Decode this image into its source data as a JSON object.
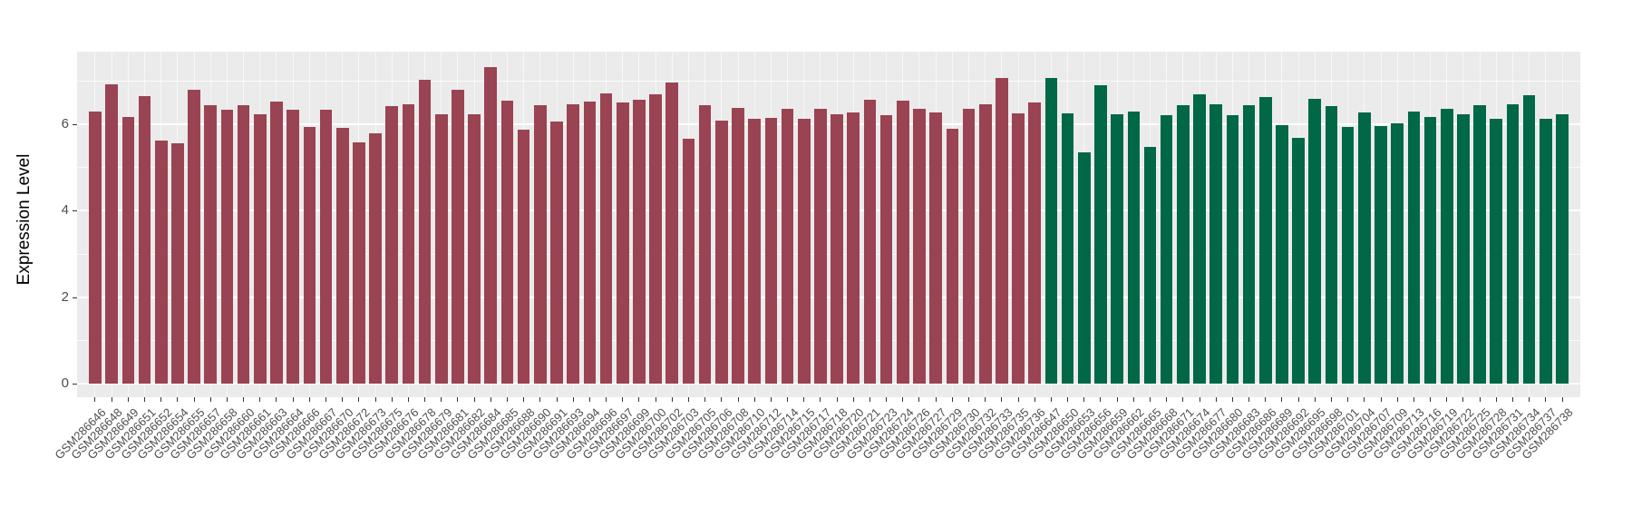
{
  "chart_data": {
    "type": "bar",
    "title": "",
    "xlabel": "",
    "ylabel": "Expression Level",
    "ylim": [
      0,
      7.66
    ],
    "yticks": [
      0,
      2,
      4,
      6
    ],
    "yminor": [
      1,
      3,
      5,
      7
    ],
    "legend_position": "none",
    "grid": "white major and minor gridlines on gray panel",
    "panel_bg": "#EBEBEB",
    "grid_color": "#FFFFFF",
    "tick_text_color": "#4d4d4d",
    "group_colors": {
      "maroon": "#9A4352",
      "green": "#006747"
    },
    "bars": [
      {
        "label": "GSM286646",
        "value": 6.29,
        "group": "maroon"
      },
      {
        "label": "GSM286648",
        "value": 6.91,
        "group": "maroon"
      },
      {
        "label": "GSM286649",
        "value": 6.15,
        "group": "maroon"
      },
      {
        "label": "GSM286651",
        "value": 6.63,
        "group": "maroon"
      },
      {
        "label": "GSM286652",
        "value": 5.61,
        "group": "maroon"
      },
      {
        "label": "GSM286654",
        "value": 5.56,
        "group": "maroon"
      },
      {
        "label": "GSM286655",
        "value": 6.79,
        "group": "maroon"
      },
      {
        "label": "GSM286657",
        "value": 6.42,
        "group": "maroon"
      },
      {
        "label": "GSM286658",
        "value": 6.32,
        "group": "maroon"
      },
      {
        "label": "GSM286660",
        "value": 6.42,
        "group": "maroon"
      },
      {
        "label": "GSM286661",
        "value": 6.22,
        "group": "maroon"
      },
      {
        "label": "GSM286663",
        "value": 6.51,
        "group": "maroon"
      },
      {
        "label": "GSM286664",
        "value": 6.33,
        "group": "maroon"
      },
      {
        "label": "GSM286666",
        "value": 5.93,
        "group": "maroon"
      },
      {
        "label": "GSM286667",
        "value": 6.33,
        "group": "maroon"
      },
      {
        "label": "GSM286670",
        "value": 5.9,
        "group": "maroon"
      },
      {
        "label": "GSM286672",
        "value": 5.58,
        "group": "maroon"
      },
      {
        "label": "GSM286673",
        "value": 5.79,
        "group": "maroon"
      },
      {
        "label": "GSM286675",
        "value": 6.4,
        "group": "maroon"
      },
      {
        "label": "GSM286676",
        "value": 6.44,
        "group": "maroon"
      },
      {
        "label": "GSM286678",
        "value": 7.02,
        "group": "maroon"
      },
      {
        "label": "GSM286679",
        "value": 6.22,
        "group": "maroon"
      },
      {
        "label": "GSM286681",
        "value": 6.79,
        "group": "maroon"
      },
      {
        "label": "GSM286682",
        "value": 6.23,
        "group": "maroon"
      },
      {
        "label": "GSM286684",
        "value": 7.3,
        "group": "maroon"
      },
      {
        "label": "GSM286685",
        "value": 6.53,
        "group": "maroon"
      },
      {
        "label": "GSM286688",
        "value": 5.87,
        "group": "maroon"
      },
      {
        "label": "GSM286690",
        "value": 6.42,
        "group": "maroon"
      },
      {
        "label": "GSM286691",
        "value": 6.05,
        "group": "maroon"
      },
      {
        "label": "GSM286693",
        "value": 6.46,
        "group": "maroon"
      },
      {
        "label": "GSM286694",
        "value": 6.51,
        "group": "maroon"
      },
      {
        "label": "GSM286696",
        "value": 6.7,
        "group": "maroon"
      },
      {
        "label": "GSM286697",
        "value": 6.49,
        "group": "maroon"
      },
      {
        "label": "GSM286699",
        "value": 6.56,
        "group": "maroon"
      },
      {
        "label": "GSM286700",
        "value": 6.69,
        "group": "maroon"
      },
      {
        "label": "GSM286702",
        "value": 6.95,
        "group": "maroon"
      },
      {
        "label": "GSM286703",
        "value": 5.66,
        "group": "maroon"
      },
      {
        "label": "GSM286705",
        "value": 6.42,
        "group": "maroon"
      },
      {
        "label": "GSM286706",
        "value": 6.08,
        "group": "maroon"
      },
      {
        "label": "GSM286708",
        "value": 6.36,
        "group": "maroon"
      },
      {
        "label": "GSM286710",
        "value": 6.11,
        "group": "maroon"
      },
      {
        "label": "GSM286712",
        "value": 6.13,
        "group": "maroon"
      },
      {
        "label": "GSM286714",
        "value": 6.34,
        "group": "maroon"
      },
      {
        "label": "GSM286715",
        "value": 6.11,
        "group": "maroon"
      },
      {
        "label": "GSM286717",
        "value": 6.34,
        "group": "maroon"
      },
      {
        "label": "GSM286718",
        "value": 6.23,
        "group": "maroon"
      },
      {
        "label": "GSM286720",
        "value": 6.27,
        "group": "maroon"
      },
      {
        "label": "GSM286721",
        "value": 6.56,
        "group": "maroon"
      },
      {
        "label": "GSM286723",
        "value": 6.19,
        "group": "maroon"
      },
      {
        "label": "GSM286724",
        "value": 6.53,
        "group": "maroon"
      },
      {
        "label": "GSM286726",
        "value": 6.34,
        "group": "maroon"
      },
      {
        "label": "GSM286727",
        "value": 6.27,
        "group": "maroon"
      },
      {
        "label": "GSM286729",
        "value": 5.88,
        "group": "maroon"
      },
      {
        "label": "GSM286730",
        "value": 6.34,
        "group": "maroon"
      },
      {
        "label": "GSM286732",
        "value": 6.44,
        "group": "maroon"
      },
      {
        "label": "GSM286733",
        "value": 7.05,
        "group": "maroon"
      },
      {
        "label": "GSM286735",
        "value": 6.25,
        "group": "maroon"
      },
      {
        "label": "GSM286736",
        "value": 6.49,
        "group": "maroon"
      },
      {
        "label": "GSM286647",
        "value": 7.05,
        "group": "green"
      },
      {
        "label": "GSM286650",
        "value": 6.25,
        "group": "green"
      },
      {
        "label": "GSM286653",
        "value": 5.35,
        "group": "green"
      },
      {
        "label": "GSM286656",
        "value": 6.88,
        "group": "green"
      },
      {
        "label": "GSM286659",
        "value": 6.22,
        "group": "green"
      },
      {
        "label": "GSM286662",
        "value": 6.28,
        "group": "green"
      },
      {
        "label": "GSM286665",
        "value": 5.47,
        "group": "green"
      },
      {
        "label": "GSM286668",
        "value": 6.19,
        "group": "green"
      },
      {
        "label": "GSM286671",
        "value": 6.42,
        "group": "green"
      },
      {
        "label": "GSM286674",
        "value": 6.69,
        "group": "green"
      },
      {
        "label": "GSM286677",
        "value": 6.46,
        "group": "green"
      },
      {
        "label": "GSM286680",
        "value": 6.19,
        "group": "green"
      },
      {
        "label": "GSM286683",
        "value": 6.42,
        "group": "green"
      },
      {
        "label": "GSM286686",
        "value": 6.61,
        "group": "green"
      },
      {
        "label": "GSM286689",
        "value": 5.96,
        "group": "green"
      },
      {
        "label": "GSM286692",
        "value": 5.68,
        "group": "green"
      },
      {
        "label": "GSM286695",
        "value": 6.58,
        "group": "green"
      },
      {
        "label": "GSM286698",
        "value": 6.4,
        "group": "green"
      },
      {
        "label": "GSM286701",
        "value": 5.93,
        "group": "green"
      },
      {
        "label": "GSM286704",
        "value": 6.27,
        "group": "green"
      },
      {
        "label": "GSM286707",
        "value": 5.94,
        "group": "green"
      },
      {
        "label": "GSM286709",
        "value": 6.01,
        "group": "green"
      },
      {
        "label": "GSM286713",
        "value": 6.29,
        "group": "green"
      },
      {
        "label": "GSM286716",
        "value": 6.15,
        "group": "green"
      },
      {
        "label": "GSM286719",
        "value": 6.34,
        "group": "green"
      },
      {
        "label": "GSM286722",
        "value": 6.21,
        "group": "green"
      },
      {
        "label": "GSM286725",
        "value": 6.42,
        "group": "green"
      },
      {
        "label": "GSM286728",
        "value": 6.11,
        "group": "green"
      },
      {
        "label": "GSM286731",
        "value": 6.44,
        "group": "green"
      },
      {
        "label": "GSM286734",
        "value": 6.67,
        "group": "green"
      },
      {
        "label": "GSM286737",
        "value": 6.11,
        "group": "green"
      },
      {
        "label": "GSM286738",
        "value": 6.23,
        "group": "green"
      }
    ]
  }
}
